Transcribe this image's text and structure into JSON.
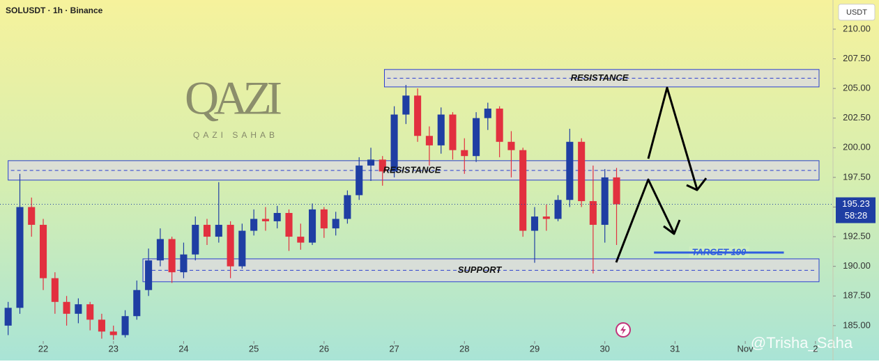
{
  "header": {
    "symbol": "SOLUSDT · 1h · Binance",
    "currency": "USDT"
  },
  "watermarks": {
    "logo": "QAZI",
    "logo_sub": "QAZI SAHAB",
    "credit": "@Trisha_Saha"
  },
  "chart_data": {
    "type": "candlestick",
    "x": [
      21.5,
      21.667,
      21.833,
      22,
      22.167,
      22.333,
      22.5,
      22.667,
      22.833,
      23,
      23.167,
      23.333,
      23.5,
      23.667,
      23.833,
      24,
      24.167,
      24.333,
      24.5,
      24.667,
      24.833,
      25,
      25.167,
      25.333,
      25.5,
      25.667,
      25.833,
      26,
      26.167,
      26.333,
      26.5,
      26.667,
      26.833,
      27,
      27.167,
      27.333,
      27.5,
      27.667,
      27.833,
      28,
      28.167,
      28.333,
      28.5,
      28.667,
      28.833,
      29,
      29.167,
      29.333,
      29.5,
      29.667,
      29.833,
      30,
      30.167
    ],
    "open": [
      185,
      186.5,
      195,
      193.5,
      189,
      187,
      186,
      186.8,
      185.5,
      184.5,
      184.2,
      185.8,
      188,
      190.5,
      192.3,
      189.5,
      191,
      193.5,
      192.5,
      193.5,
      190,
      193,
      194,
      193.8,
      194.5,
      192.5,
      192,
      194.8,
      193.2,
      194,
      196,
      198.5,
      199,
      198,
      202.8,
      204.4,
      201,
      200.2,
      202.8,
      199.8,
      199.3,
      202.5,
      203.3,
      200.5,
      199.8,
      193,
      194.2,
      194,
      195.6,
      200.5,
      195.5,
      193.5,
      197.5
    ],
    "high": [
      187,
      197.8,
      195.8,
      194,
      189.5,
      187.5,
      187.3,
      187,
      186,
      185,
      186.3,
      188.8,
      191.5,
      193.2,
      192.5,
      192,
      194.2,
      194,
      197.1,
      193.8,
      193.6,
      194.8,
      195,
      195.1,
      194.8,
      193.6,
      195.3,
      195,
      194.6,
      196.4,
      199.2,
      200,
      199.3,
      203.5,
      205.3,
      205,
      201.8,
      203.4,
      203,
      200.8,
      203,
      203.8,
      203.5,
      201.4,
      200,
      195,
      195.2,
      196,
      201.6,
      200.8,
      198.5,
      198.2,
      198.3
    ],
    "low": [
      184.2,
      186,
      192.5,
      188,
      186,
      185,
      185.2,
      184.6,
      183.9,
      183.8,
      184,
      185.5,
      187.5,
      190,
      188.6,
      189,
      190.5,
      191.8,
      192,
      189,
      189.8,
      192.6,
      193,
      193.2,
      191.3,
      191.4,
      191.8,
      192.4,
      192.6,
      193.6,
      195.6,
      197.2,
      196.8,
      197.5,
      202,
      200.5,
      198.5,
      199.5,
      199,
      197.8,
      198.8,
      201.5,
      199.2,
      197.5,
      192.5,
      190.3,
      193,
      193.8,
      195,
      195,
      189.4,
      192,
      191.8
    ],
    "close": [
      186.5,
      195,
      193.5,
      189,
      187,
      186,
      186.8,
      185.5,
      184.5,
      184.2,
      185.8,
      188,
      190.5,
      192.3,
      189.5,
      191,
      193.5,
      192.5,
      193.5,
      190,
      193,
      194,
      193.8,
      194.5,
      192.5,
      192,
      194.8,
      193.2,
      194,
      196,
      198.5,
      199,
      198,
      202.8,
      204.4,
      201,
      200.2,
      202.8,
      199.8,
      199.3,
      202.5,
      203.3,
      200.5,
      199.8,
      193,
      194.2,
      194,
      195.6,
      200.5,
      195.5,
      193.5,
      197.5,
      195.23
    ],
    "up_color": "#1f3ea3",
    "down_color": "#e2303f",
    "last_price": 195.23,
    "countdown": "58:28",
    "xlim": [
      21.384,
      33.25
    ],
    "ylim": [
      183.7,
      212.46
    ],
    "xticks": [
      22,
      23,
      24,
      25,
      26,
      27,
      28,
      29,
      30,
      31,
      {
        "value": 32,
        "label": "Nov"
      },
      {
        "value": 33,
        "label": "2"
      }
    ],
    "yticks": [
      {
        "value": 185,
        "label": "185.00"
      },
      {
        "value": 187.5,
        "label": "187.50"
      },
      {
        "value": 190,
        "label": "190.00"
      },
      {
        "value": 192.5,
        "label": "192.50"
      },
      {
        "value": 195,
        "label": "195.00"
      },
      {
        "value": 197.5,
        "label": "197.50"
      },
      {
        "value": 200,
        "label": "200.00"
      },
      {
        "value": 202.5,
        "label": "202.50"
      },
      {
        "value": 205,
        "label": "205.00"
      },
      {
        "value": 207.5,
        "label": "207.50"
      },
      {
        "value": 210,
        "label": "210.00"
      }
    ],
    "zones": [
      {
        "label": "RESISTANCE",
        "start": 26.86,
        "low": 205.13,
        "high": 206.6
      },
      {
        "label": "RESISTANCE",
        "start": 21.5,
        "low": 197.27,
        "high": 198.91
      },
      {
        "label": "SUPPORT",
        "start": 23.42,
        "low": 188.7,
        "high": 190.63
      }
    ],
    "target": {
      "label": "TARGET 190",
      "value": 191.16,
      "start": 30.7,
      "end": 32.55
    }
  }
}
